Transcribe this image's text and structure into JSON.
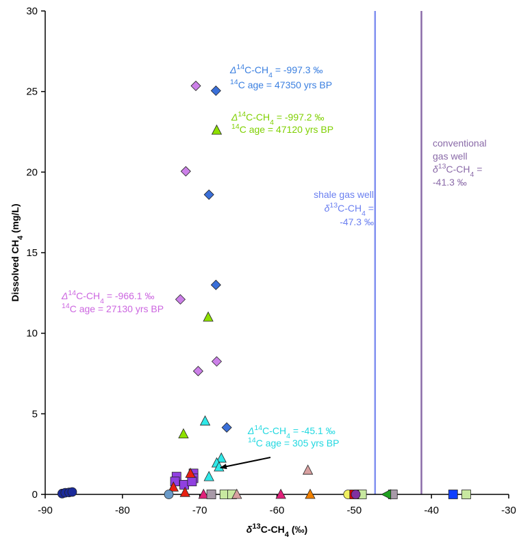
{
  "chart_data": {
    "type": "scatter",
    "xlabel": [
      "δ",
      "13",
      "C-CH",
      "4",
      " (‰)"
    ],
    "ylabel": [
      "Dissolved CH",
      "4",
      " (mg/L)"
    ],
    "xlim": [
      -90,
      -30
    ],
    "xticks": [
      -90,
      -80,
      -70,
      -60,
      -50,
      -40,
      -30
    ],
    "ylim": [
      0,
      30
    ],
    "yticks": [
      0,
      5,
      10,
      15,
      20,
      25,
      30
    ],
    "grid": false,
    "vlines": [
      {
        "x": -47.3,
        "color": "#7f8ff0"
      },
      {
        "x": -41.3,
        "color": "#8a6aa8"
      }
    ],
    "annotations": [
      {
        "color": "#3a7fe0",
        "lines": [
          [
            "Δ",
            "14",
            "C-CH",
            "4",
            " = -997.3 ‰"
          ],
          [
            "14",
            "C age = 47350 yrs BP"
          ]
        ]
      },
      {
        "color": "#7fd000",
        "lines": [
          [
            "Δ",
            "14",
            "C-CH",
            "4",
            " = -997.2 ‰"
          ],
          [
            "14",
            "C age = 47120 yrs BP"
          ]
        ]
      },
      {
        "color": "#cc66e0",
        "lines": [
          [
            "Δ",
            "14",
            "C-CH",
            "4",
            " = -966.1 ‰"
          ],
          [
            "14",
            "C age = 27130 yrs BP"
          ]
        ]
      },
      {
        "color": "#20d8e0",
        "lines": [
          [
            "Δ",
            "14",
            "C-CH",
            "4",
            " = -45.1 ‰"
          ],
          [
            "14",
            "C age = 305 yrs BP"
          ]
        ]
      },
      {
        "color": "#6a7ff0",
        "lines": [
          [
            "shale gas well"
          ],
          [
            "δ",
            "13",
            "C-CH",
            "4",
            " ="
          ],
          [
            "-47.3 ‰"
          ]
        ]
      },
      {
        "color": "#8a6aa8",
        "lines": [
          [
            "conventional"
          ],
          [
            "gas well"
          ],
          [
            "δ",
            "13",
            "C-CH",
            "4",
            " ="
          ],
          [
            "-41.3 ‰"
          ]
        ]
      }
    ],
    "series": [
      {
        "marker": "diamond",
        "color": "#cc80e8",
        "x": [
          -70.5,
          -71.8,
          -72.5,
          -67.8,
          -70.2
        ],
        "values": [
          25.35,
          20.05,
          12.1,
          8.25,
          7.65
        ]
      },
      {
        "marker": "diamond",
        "color": "#3a6fd8",
        "x": [
          -67.9,
          -68.8,
          -67.9,
          -66.5
        ],
        "values": [
          25.05,
          18.6,
          13.0,
          4.15
        ]
      },
      {
        "marker": "triangle",
        "color": "#8ee000",
        "x": [
          -67.8,
          -68.9,
          -72.1
        ],
        "values": [
          22.6,
          11.0,
          3.75
        ]
      },
      {
        "marker": "triangle",
        "color": "#30e8e8",
        "x": [
          -69.3,
          -67.2,
          -67.8,
          -68.8,
          -67.5
        ],
        "values": [
          4.55,
          2.25,
          1.95,
          1.1,
          1.7
        ]
      },
      {
        "marker": "square",
        "color": "#9040e0",
        "x": [
          -73.0,
          -73.2,
          -72.0,
          -70.8,
          -70.8,
          -71.0
        ],
        "values": [
          1.1,
          0.8,
          0.6,
          1.3,
          1.0,
          0.8
        ]
      },
      {
        "marker": "triangle",
        "color": "#e82010",
        "x": [
          -73.4,
          -71.2,
          -71.9
        ],
        "values": [
          0.45,
          1.3,
          0.12
        ]
      },
      {
        "marker": "circle",
        "color": "#1a2a9a",
        "x": [
          -87.8,
          -87.4,
          -86.9,
          -86.5
        ],
        "values": [
          0.05,
          0.1,
          0.12,
          0.15
        ]
      },
      {
        "marker": "circle",
        "color": "#6a9ac8",
        "x": [
          -74.0
        ],
        "values": [
          0
        ]
      },
      {
        "marker": "triangle",
        "color": "#e0207a",
        "x": [
          -69.5,
          -59.5
        ],
        "values": [
          0,
          0
        ]
      },
      {
        "marker": "square",
        "color": "#a89aa8",
        "x": [
          -68.5,
          -45.0
        ],
        "values": [
          0,
          0
        ]
      },
      {
        "marker": "square",
        "color": "#c8e8a0",
        "x": [
          -66.8,
          -65.8,
          -49.0,
          -35.5
        ],
        "values": [
          0,
          0,
          0,
          0
        ]
      },
      {
        "marker": "triangle",
        "color": "#f08000",
        "x": [
          -55.7
        ],
        "values": [
          0
        ]
      },
      {
        "marker": "triangle",
        "color": "#d8a0a0",
        "x": [
          -56.0,
          -65.2
        ],
        "values": [
          1.5,
          0
        ]
      },
      {
        "marker": "circle",
        "color": "#f0f060",
        "x": [
          -50.8
        ],
        "values": [
          0
        ]
      },
      {
        "marker": "square",
        "color": "#e00000",
        "x": [
          -50.0
        ],
        "values": [
          0
        ]
      },
      {
        "marker": "circle",
        "color": "#8030a0",
        "x": [
          -49.8
        ],
        "values": [
          0
        ]
      },
      {
        "marker": "square",
        "color": "#1040ff",
        "x": [
          -37.2
        ],
        "values": [
          0
        ]
      },
      {
        "marker": "triangle-left",
        "color": "#20a020",
        "x": [
          -45.8
        ],
        "values": [
          0
        ]
      }
    ]
  }
}
